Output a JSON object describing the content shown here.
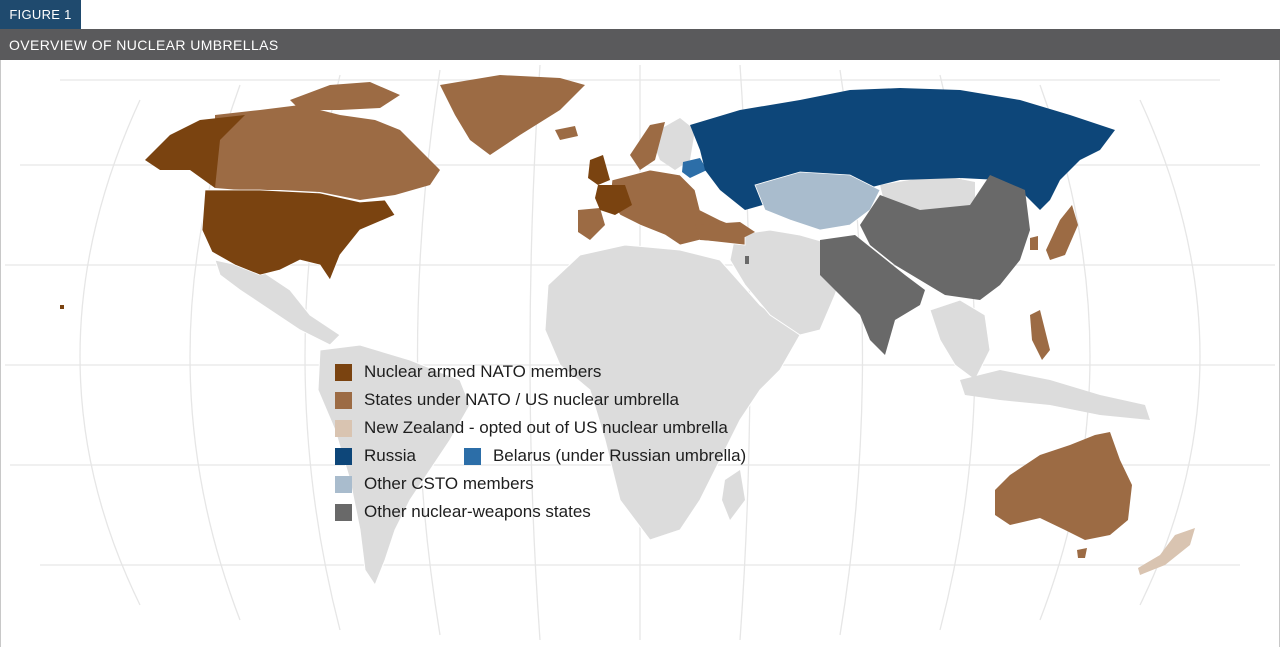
{
  "figure_tag": "FIGURE 1",
  "title": "OVERVIEW OF NUCLEAR UMBRELLAS",
  "colors": {
    "nato_nuclear": "#7a4310",
    "nato_umbrella": "#9c6b44",
    "new_zealand": "#d9c4b1",
    "russia": "#0d4679",
    "belarus": "#2c6ea8",
    "csto": "#a9bccd",
    "other_nuclear": "#696969",
    "other_countries": "#dcdcdc",
    "grid": "#e6e6e6"
  },
  "legend": [
    {
      "items": [
        {
          "label": "Nuclear armed NATO members",
          "color_key": "nato_nuclear"
        }
      ]
    },
    {
      "items": [
        {
          "label": "States under NATO / US nuclear umbrella",
          "color_key": "nato_umbrella"
        }
      ]
    },
    {
      "items": [
        {
          "label": "New Zealand - opted out of US nuclear umbrella",
          "color_key": "new_zealand"
        }
      ]
    },
    {
      "items": [
        {
          "label": "Russia",
          "color_key": "russia"
        },
        {
          "label": "Belarus (under Russian umbrella)",
          "color_key": "belarus"
        }
      ]
    },
    {
      "items": [
        {
          "label": "Other CSTO members",
          "color_key": "csto"
        }
      ]
    },
    {
      "items": [
        {
          "label": "Other nuclear-weapons states",
          "color_key": "other_nuclear"
        }
      ]
    }
  ]
}
